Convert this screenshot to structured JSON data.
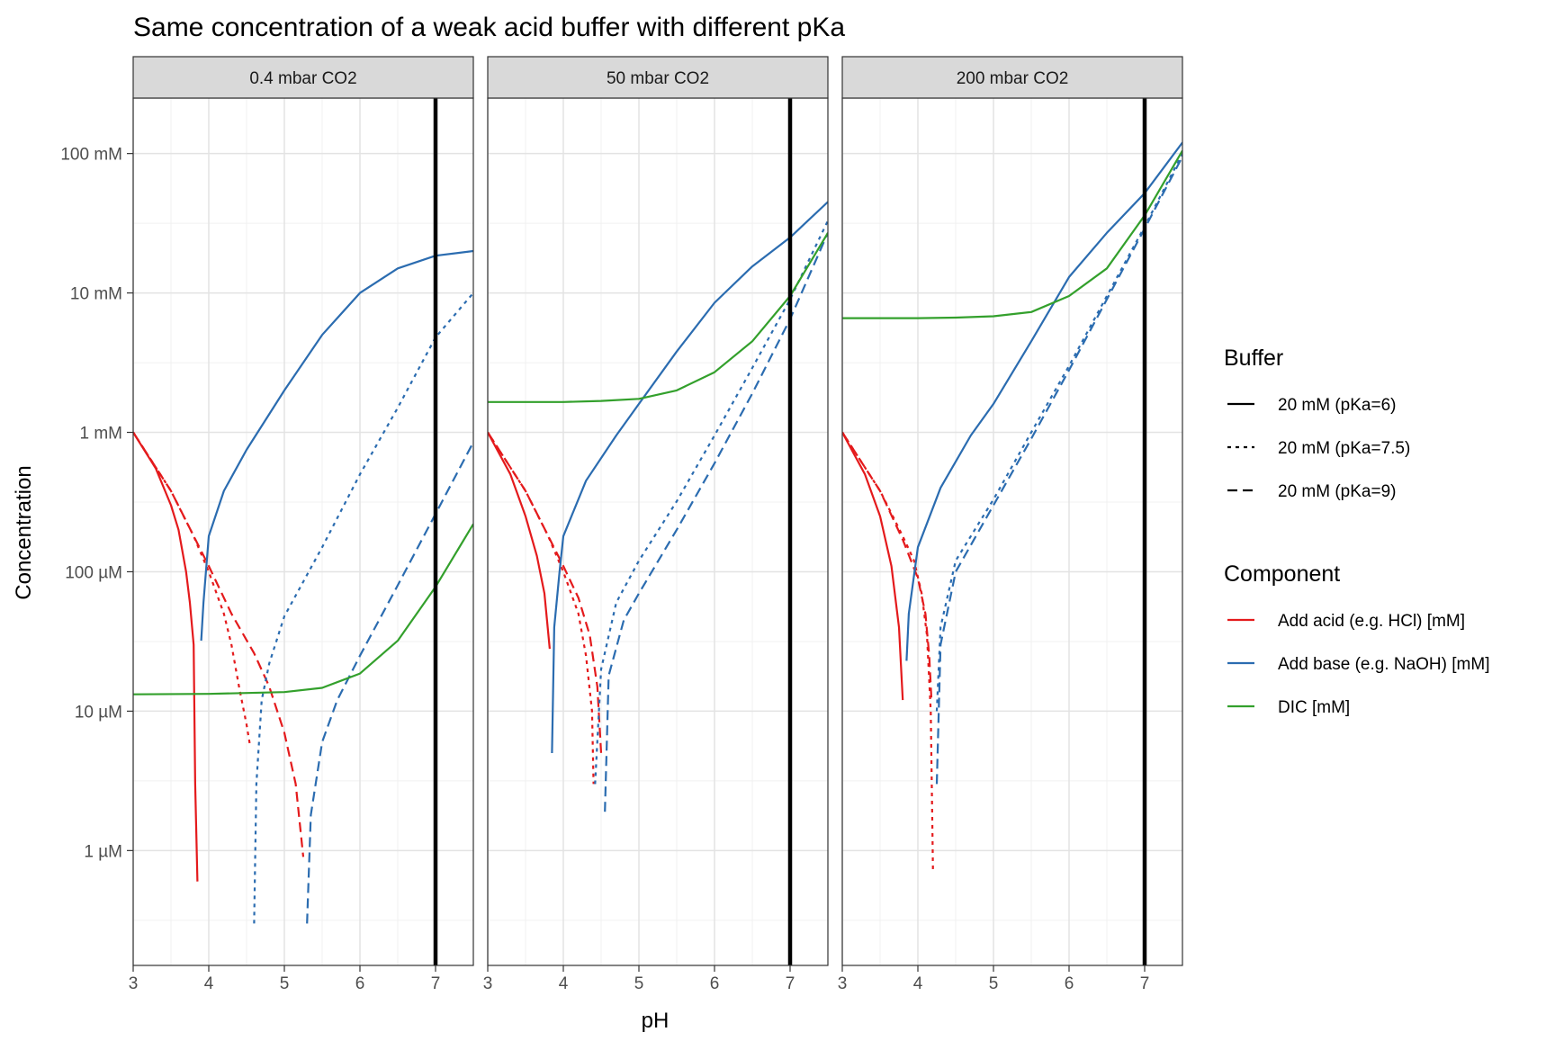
{
  "chart_data": {
    "type": "line",
    "title": "Same concentration of a weak acid buffer with different pKa",
    "xlabel": "pH",
    "ylabel": "Concentration",
    "xlim": [
      3,
      7.5
    ],
    "ylog": true,
    "ylim_mM": [
      0.00015,
      250
    ],
    "x_ticks": [
      3,
      4,
      5,
      6,
      7
    ],
    "y_ticks": [
      {
        "value": 0.001,
        "label": "1 µM"
      },
      {
        "value": 0.01,
        "label": "10 µM"
      },
      {
        "value": 0.1,
        "label": "100 µM"
      },
      {
        "value": 1,
        "label": "1 mM"
      },
      {
        "value": 10,
        "label": "10 mM"
      },
      {
        "value": 100,
        "label": "100 mM"
      }
    ],
    "grid": true,
    "vline_pH": 7,
    "legend_position": "right",
    "legend": {
      "buffer_title": "Buffer",
      "buffer_items": [
        {
          "label": "20 mM (pKa=6)",
          "dash": "solid"
        },
        {
          "label": "20 mM (pKa=7.5)",
          "dash": "dotted"
        },
        {
          "label": "20 mM (pKa=9)",
          "dash": "dashed"
        }
      ],
      "component_title": "Component",
      "component_items": [
        {
          "label": "Add acid (e.g. HCl) [mM]",
          "color": "#e41a1c"
        },
        {
          "label": "Add base (e.g. NaOH) [mM]",
          "color": "#2b6cb0"
        },
        {
          "label": "DIC [mM]",
          "color": "#33a02c"
        }
      ]
    },
    "panels": [
      {
        "strip": "0.4 mbar CO2",
        "series": [
          {
            "component": "acid",
            "buffer": "pKa=6",
            "points": [
              [
                3,
                1.0
              ],
              [
                3.3,
                0.55
              ],
              [
                3.5,
                0.3
              ],
              [
                3.6,
                0.2
              ],
              [
                3.7,
                0.1
              ],
              [
                3.75,
                0.06
              ],
              [
                3.8,
                0.03
              ],
              [
                3.82,
                0.003
              ],
              [
                3.85,
                0.0006
              ]
            ]
          },
          {
            "component": "acid",
            "buffer": "pKa=7.5",
            "points": [
              [
                3,
                1.0
              ],
              [
                3.5,
                0.38
              ],
              [
                3.8,
                0.18
              ],
              [
                4.0,
                0.1
              ],
              [
                4.2,
                0.05
              ],
              [
                4.3,
                0.03
              ],
              [
                4.4,
                0.015
              ],
              [
                4.5,
                0.008
              ],
              [
                4.55,
                0.0055
              ]
            ]
          },
          {
            "component": "acid",
            "buffer": "pKa=9",
            "points": [
              [
                3,
                1.0
              ],
              [
                3.5,
                0.38
              ],
              [
                4.0,
                0.11
              ],
              [
                4.3,
                0.05
              ],
              [
                4.6,
                0.026
              ],
              [
                4.8,
                0.015
              ],
              [
                5.0,
                0.007
              ],
              [
                5.15,
                0.003
              ],
              [
                5.25,
                0.0009
              ]
            ]
          },
          {
            "component": "base",
            "buffer": "pKa=6",
            "points": [
              [
                3.9,
                0.032
              ],
              [
                3.93,
                0.06
              ],
              [
                4.0,
                0.18
              ],
              [
                4.2,
                0.38
              ],
              [
                4.5,
                0.75
              ],
              [
                5.0,
                2.0
              ],
              [
                5.5,
                5.0
              ],
              [
                6.0,
                10.0
              ],
              [
                6.5,
                15.0
              ],
              [
                7.0,
                18.5
              ],
              [
                7.5,
                20.0
              ]
            ]
          },
          {
            "component": "base",
            "buffer": "pKa=7.5",
            "points": [
              [
                4.6,
                0.0003
              ],
              [
                4.63,
                0.003
              ],
              [
                4.7,
                0.012
              ],
              [
                4.8,
                0.022
              ],
              [
                5.0,
                0.048
              ],
              [
                5.5,
                0.15
              ],
              [
                6.0,
                0.5
              ],
              [
                6.5,
                1.5
              ],
              [
                7.0,
                4.8
              ],
              [
                7.5,
                10.0
              ]
            ]
          },
          {
            "component": "base",
            "buffer": "pKa=9",
            "points": [
              [
                5.3,
                0.0003
              ],
              [
                5.35,
                0.0018
              ],
              [
                5.5,
                0.006
              ],
              [
                5.7,
                0.012
              ],
              [
                6.0,
                0.025
              ],
              [
                6.5,
                0.08
              ],
              [
                7.0,
                0.26
              ],
              [
                7.5,
                0.85
              ]
            ]
          },
          {
            "component": "DIC",
            "buffer": "pKa=6",
            "points": [
              [
                3,
                0.0132
              ],
              [
                4,
                0.0133
              ],
              [
                5,
                0.0137
              ],
              [
                5.5,
                0.0147
              ],
              [
                6,
                0.0186
              ],
              [
                6.5,
                0.032
              ],
              [
                7,
                0.078
              ],
              [
                7.5,
                0.22
              ]
            ]
          }
        ]
      },
      {
        "strip": "50 mbar CO2",
        "series": [
          {
            "component": "acid",
            "buffer": "pKa=6",
            "points": [
              [
                3,
                1.0
              ],
              [
                3.3,
                0.5
              ],
              [
                3.5,
                0.25
              ],
              [
                3.65,
                0.13
              ],
              [
                3.75,
                0.07
              ],
              [
                3.82,
                0.028
              ]
            ]
          },
          {
            "component": "acid",
            "buffer": "pKa=7.5",
            "points": [
              [
                3,
                1.0
              ],
              [
                3.5,
                0.38
              ],
              [
                3.8,
                0.18
              ],
              [
                4.0,
                0.1
              ],
              [
                4.2,
                0.05
              ],
              [
                4.3,
                0.025
              ],
              [
                4.38,
                0.01
              ],
              [
                4.4,
                0.003
              ]
            ]
          },
          {
            "component": "acid",
            "buffer": "pKa=9",
            "points": [
              [
                3,
                1.0
              ],
              [
                3.5,
                0.38
              ],
              [
                4.0,
                0.11
              ],
              [
                4.2,
                0.065
              ],
              [
                4.35,
                0.035
              ],
              [
                4.45,
                0.015
              ],
              [
                4.5,
                0.005
              ]
            ]
          },
          {
            "component": "base",
            "buffer": "pKa=6",
            "points": [
              [
                3.85,
                0.005
              ],
              [
                3.88,
                0.04
              ],
              [
                3.95,
                0.1
              ],
              [
                4.0,
                0.18
              ],
              [
                4.3,
                0.45
              ],
              [
                4.7,
                0.95
              ],
              [
                5.0,
                1.6
              ],
              [
                5.5,
                3.8
              ],
              [
                6.0,
                8.5
              ],
              [
                6.5,
                15.5
              ],
              [
                7.0,
                25.0
              ],
              [
                7.5,
                45.0
              ]
            ]
          },
          {
            "component": "base",
            "buffer": "pKa=7.5",
            "points": [
              [
                4.42,
                0.003
              ],
              [
                4.5,
                0.02
              ],
              [
                4.7,
                0.06
              ],
              [
                5.0,
                0.12
              ],
              [
                5.5,
                0.32
              ],
              [
                6.0,
                0.95
              ],
              [
                6.5,
                2.9
              ],
              [
                7.0,
                9.0
              ],
              [
                7.5,
                33.0
              ]
            ]
          },
          {
            "component": "base",
            "buffer": "pKa=9",
            "points": [
              [
                4.55,
                0.0019
              ],
              [
                4.6,
                0.018
              ],
              [
                4.8,
                0.045
              ],
              [
                5.0,
                0.07
              ],
              [
                5.5,
                0.2
              ],
              [
                6.0,
                0.6
              ],
              [
                6.5,
                1.9
              ],
              [
                7.0,
                6.5
              ],
              [
                7.5,
                27.0
              ]
            ]
          },
          {
            "component": "DIC",
            "buffer": "pKa=6",
            "points": [
              [
                3,
                1.65
              ],
              [
                4,
                1.65
              ],
              [
                4.5,
                1.68
              ],
              [
                5,
                1.74
              ],
              [
                5.5,
                2.0
              ],
              [
                6,
                2.7
              ],
              [
                6.5,
                4.5
              ],
              [
                7,
                9.5
              ],
              [
                7.5,
                27.0
              ]
            ]
          }
        ]
      },
      {
        "strip": "200 mbar CO2",
        "series": [
          {
            "component": "acid",
            "buffer": "pKa=6",
            "points": [
              [
                3,
                1.0
              ],
              [
                3.3,
                0.5
              ],
              [
                3.5,
                0.25
              ],
              [
                3.65,
                0.11
              ],
              [
                3.75,
                0.04
              ],
              [
                3.8,
                0.012
              ]
            ]
          },
          {
            "component": "acid",
            "buffer": "pKa=7.5",
            "points": [
              [
                3,
                1.0
              ],
              [
                3.5,
                0.38
              ],
              [
                3.8,
                0.18
              ],
              [
                3.95,
                0.12
              ],
              [
                4.05,
                0.07
              ],
              [
                4.12,
                0.035
              ],
              [
                4.17,
                0.01
              ],
              [
                4.2,
                0.0007
              ]
            ]
          },
          {
            "component": "acid",
            "buffer": "pKa=9",
            "points": [
              [
                3,
                1.0
              ],
              [
                3.5,
                0.38
              ],
              [
                3.8,
                0.17
              ],
              [
                4.0,
                0.09
              ],
              [
                4.1,
                0.05
              ],
              [
                4.15,
                0.025
              ],
              [
                4.18,
                0.012
              ]
            ]
          },
          {
            "component": "base",
            "buffer": "pKa=6",
            "points": [
              [
                3.85,
                0.023
              ],
              [
                3.88,
                0.05
              ],
              [
                4.0,
                0.15
              ],
              [
                4.3,
                0.4
              ],
              [
                4.7,
                0.95
              ],
              [
                5.0,
                1.6
              ],
              [
                5.5,
                4.5
              ],
              [
                6.0,
                13.0
              ],
              [
                6.5,
                27.0
              ],
              [
                7.0,
                52.0
              ],
              [
                7.5,
                120.0
              ]
            ]
          },
          {
            "component": "base",
            "buffer": "pKa=7.5",
            "points": [
              [
                4.25,
                0.01
              ],
              [
                4.3,
                0.04
              ],
              [
                4.5,
                0.12
              ],
              [
                5.0,
                0.33
              ],
              [
                5.5,
                1.0
              ],
              [
                6.0,
                3.0
              ],
              [
                6.5,
                9.5
              ],
              [
                7.0,
                30.0
              ],
              [
                7.5,
                100.0
              ]
            ]
          },
          {
            "component": "base",
            "buffer": "pKa=9",
            "points": [
              [
                4.25,
                0.003
              ],
              [
                4.3,
                0.03
              ],
              [
                4.5,
                0.1
              ],
              [
                5.0,
                0.3
              ],
              [
                5.5,
                0.9
              ],
              [
                6.0,
                2.8
              ],
              [
                6.5,
                9.0
              ],
              [
                7.0,
                29.0
              ],
              [
                7.5,
                95.0
              ]
            ]
          },
          {
            "component": "DIC",
            "buffer": "pKa=6",
            "points": [
              [
                3,
                6.6
              ],
              [
                4,
                6.6
              ],
              [
                4.5,
                6.65
              ],
              [
                5,
                6.8
              ],
              [
                5.5,
                7.3
              ],
              [
                6,
                9.5
              ],
              [
                6.5,
                15.0
              ],
              [
                7,
                36.0
              ],
              [
                7.5,
                105.0
              ]
            ]
          }
        ]
      }
    ]
  }
}
